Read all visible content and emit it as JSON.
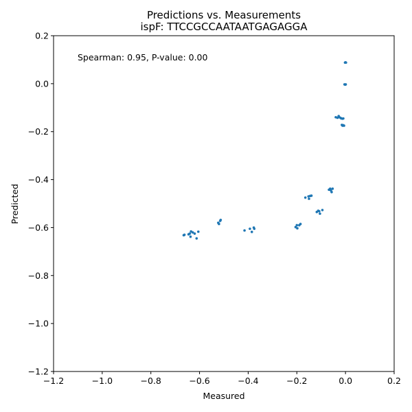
{
  "chart_data": {
    "type": "scatter",
    "title": "Predictions vs. Measurements",
    "subtitle": "ispF: TTCCGCCAATAATGAGAGGA",
    "xlabel": "Measured",
    "ylabel": "Predicted",
    "xlim": [
      -1.2,
      0.2
    ],
    "ylim": [
      -1.2,
      0.2
    ],
    "xticks": [
      -1.2,
      -1.0,
      -0.8,
      -0.6,
      -0.4,
      -0.2,
      0.0,
      0.2
    ],
    "yticks": [
      -1.2,
      -1.0,
      -0.8,
      -0.6,
      -0.4,
      -0.2,
      0.0,
      0.2
    ],
    "xtick_labels": [
      "−1.2",
      "−1.0",
      "−0.8",
      "−0.6",
      "−0.4",
      "−0.2",
      "0.0",
      "0.2"
    ],
    "ytick_labels": [
      "−1.2",
      "−1.0",
      "−0.8",
      "−0.6",
      "−0.4",
      "−0.2",
      "0.0",
      "0.2"
    ],
    "annotation": "Spearman: 0.95, P-value: 0.00",
    "grid": false,
    "marker_color": "#1f77b4",
    "points": [
      [
        -0.665,
        -0.632
      ],
      [
        -0.662,
        -0.63
      ],
      [
        -0.645,
        -0.628
      ],
      [
        -0.64,
        -0.625
      ],
      [
        -0.637,
        -0.638
      ],
      [
        -0.635,
        -0.616
      ],
      [
        -0.628,
        -0.62
      ],
      [
        -0.62,
        -0.625
      ],
      [
        -0.612,
        -0.645
      ],
      [
        -0.605,
        -0.617
      ],
      [
        -0.523,
        -0.58
      ],
      [
        -0.52,
        -0.585
      ],
      [
        -0.515,
        -0.572
      ],
      [
        -0.513,
        -0.568
      ],
      [
        -0.415,
        -0.612
      ],
      [
        -0.393,
        -0.605
      ],
      [
        -0.385,
        -0.618
      ],
      [
        -0.377,
        -0.6
      ],
      [
        -0.375,
        -0.605
      ],
      [
        -0.205,
        -0.598
      ],
      [
        -0.2,
        -0.59
      ],
      [
        -0.198,
        -0.603
      ],
      [
        -0.19,
        -0.59
      ],
      [
        -0.185,
        -0.585
      ],
      [
        -0.165,
        -0.475
      ],
      [
        -0.152,
        -0.47
      ],
      [
        -0.15,
        -0.48
      ],
      [
        -0.145,
        -0.468
      ],
      [
        -0.14,
        -0.467
      ],
      [
        -0.118,
        -0.535
      ],
      [
        -0.112,
        -0.53
      ],
      [
        -0.108,
        -0.532
      ],
      [
        -0.105,
        -0.542
      ],
      [
        -0.095,
        -0.527
      ],
      [
        -0.068,
        -0.442
      ],
      [
        -0.063,
        -0.438
      ],
      [
        -0.06,
        -0.445
      ],
      [
        -0.057,
        -0.452
      ],
      [
        -0.053,
        -0.438
      ],
      [
        -0.04,
        -0.14
      ],
      [
        -0.033,
        -0.142
      ],
      [
        -0.028,
        -0.135
      ],
      [
        -0.025,
        -0.14
      ],
      [
        -0.02,
        -0.143
      ],
      [
        -0.017,
        -0.145
      ],
      [
        -0.012,
        -0.146
      ],
      [
        -0.009,
        -0.145
      ],
      [
        -0.015,
        -0.172
      ],
      [
        -0.012,
        -0.175
      ],
      [
        -0.01,
        -0.173
      ],
      [
        -0.006,
        -0.175
      ],
      [
        -0.004,
        -0.003
      ],
      [
        -0.001,
        -0.004
      ],
      [
        0.001,
        -0.003
      ],
      [
        -0.002,
        0.088
      ],
      [
        0.0,
        0.089
      ],
      [
        0.002,
        0.088
      ]
    ]
  }
}
